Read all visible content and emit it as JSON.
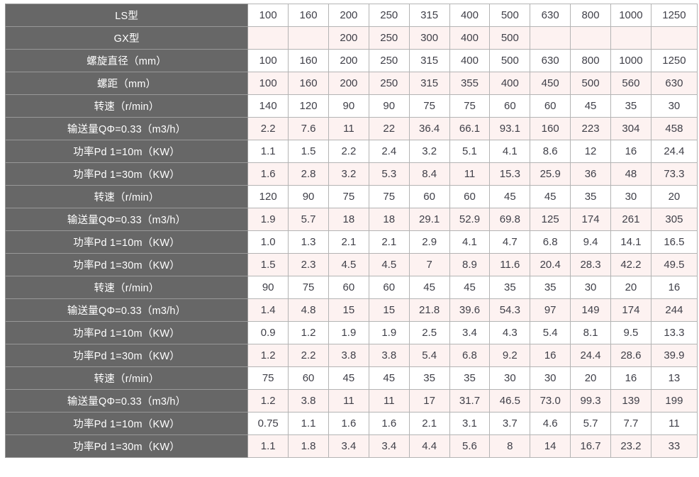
{
  "table": {
    "name": "screw-conveyor-spec-table",
    "columns_count": 11,
    "colors": {
      "header_bg": "#676767",
      "header_text": "#ffffff",
      "header_divider": "#989898",
      "row_odd_bg": "#ffffff",
      "row_even_bg": "#fdf2f1",
      "cell_border": "#b4b4b4",
      "cell_text": "#404049"
    },
    "rows": [
      {
        "label": "LS型",
        "values": [
          "100",
          "160",
          "200",
          "250",
          "315",
          "400",
          "500",
          "630",
          "800",
          "1000",
          "1250"
        ]
      },
      {
        "label": "GX型",
        "values": [
          "",
          "",
          "200",
          "250",
          "300",
          "400",
          "500",
          "",
          "",
          "",
          ""
        ]
      },
      {
        "label": "螺旋直径（mm）",
        "values": [
          "100",
          "160",
          "200",
          "250",
          "315",
          "400",
          "500",
          "630",
          "800",
          "1000",
          "1250"
        ]
      },
      {
        "label": "螺距（mm）",
        "values": [
          "100",
          "160",
          "200",
          "250",
          "315",
          "355",
          "400",
          "450",
          "500",
          "560",
          "630"
        ]
      },
      {
        "label": "转速（r/min）",
        "values": [
          "140",
          "120",
          "90",
          "90",
          "75",
          "75",
          "60",
          "60",
          "45",
          "35",
          "30"
        ]
      },
      {
        "label": "输送量QΦ=0.33（m3/h）",
        "values": [
          "2.2",
          "7.6",
          "11",
          "22",
          "36.4",
          "66.1",
          "93.1",
          "160",
          "223",
          "304",
          "458"
        ]
      },
      {
        "label": "功率Pd 1=10m（KW）",
        "values": [
          "1.1",
          "1.5",
          "2.2",
          "2.4",
          "3.2",
          "5.1",
          "4.1",
          "8.6",
          "12",
          "16",
          "24.4"
        ]
      },
      {
        "label": "功率Pd 1=30m（KW）",
        "values": [
          "1.6",
          "2.8",
          "3.2",
          "5.3",
          "8.4",
          "11",
          "15.3",
          "25.9",
          "36",
          "48",
          "73.3"
        ]
      },
      {
        "label": "转速（r/min）",
        "values": [
          "120",
          "90",
          "75",
          "75",
          "60",
          "60",
          "45",
          "45",
          "35",
          "30",
          "20"
        ]
      },
      {
        "label": "输送量QΦ=0.33（m3/h）",
        "values": [
          "1.9",
          "5.7",
          "18",
          "18",
          "29.1",
          "52.9",
          "69.8",
          "125",
          "174",
          "261",
          "305"
        ]
      },
      {
        "label": "功率Pd 1=10m（KW）",
        "values": [
          "1.0",
          "1.3",
          "2.1",
          "2.1",
          "2.9",
          "4.1",
          "4.7",
          "6.8",
          "9.4",
          "14.1",
          "16.5"
        ]
      },
      {
        "label": "功率Pd 1=30m（KW）",
        "values": [
          "1.5",
          "2.3",
          "4.5",
          "4.5",
          "7",
          "8.9",
          "11.6",
          "20.4",
          "28.3",
          "42.2",
          "49.5"
        ]
      },
      {
        "label": "转速（r/min）",
        "values": [
          "90",
          "75",
          "60",
          "60",
          "45",
          "45",
          "35",
          "35",
          "30",
          "20",
          "16"
        ]
      },
      {
        "label": "输送量QΦ=0.33（m3/h）",
        "values": [
          "1.4",
          "4.8",
          "15",
          "15",
          "21.8",
          "39.6",
          "54.3",
          "97",
          "149",
          "174",
          "244"
        ]
      },
      {
        "label": "功率Pd 1=10m（KW）",
        "values": [
          "0.9",
          "1.2",
          "1.9",
          "1.9",
          "2.5",
          "3.4",
          "4.3",
          "5.4",
          "8.1",
          "9.5",
          "13.3"
        ]
      },
      {
        "label": "功率Pd 1=30m（KW）",
        "values": [
          "1.2",
          "2.2",
          "3.8",
          "3.8",
          "5.4",
          "6.8",
          "9.2",
          "16",
          "24.4",
          "28.6",
          "39.9"
        ]
      },
      {
        "label": "转速（r/min）",
        "values": [
          "75",
          "60",
          "45",
          "45",
          "35",
          "35",
          "30",
          "30",
          "20",
          "16",
          "13"
        ]
      },
      {
        "label": "输送量QΦ=0.33（m3/h）",
        "values": [
          "1.2",
          "3.8",
          "11",
          "11",
          "17",
          "31.7",
          "46.5",
          "73.0",
          "99.3",
          "139",
          "199"
        ]
      },
      {
        "label": "功率Pd 1=10m（KW）",
        "values": [
          "0.75",
          "1.1",
          "1.6",
          "1.6",
          "2.1",
          "3.1",
          "3.7",
          "4.6",
          "5.7",
          "7.7",
          "11"
        ]
      },
      {
        "label": "功率Pd 1=30m（KW）",
        "values": [
          "1.1",
          "1.8",
          "3.4",
          "3.4",
          "4.4",
          "5.6",
          "8",
          "14",
          "16.7",
          "23.2",
          "33"
        ]
      }
    ]
  }
}
